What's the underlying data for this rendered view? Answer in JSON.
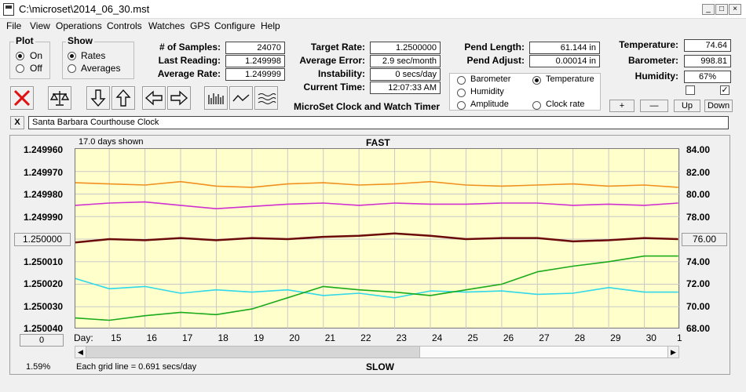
{
  "window": {
    "title": "C:\\microset\\2014_06_30.mst"
  },
  "menu": [
    "File",
    "View",
    "Operations",
    "Controls",
    "Watches",
    "GPS",
    "Configure",
    "Help"
  ],
  "plot_group": {
    "title": "Plot",
    "on": "On",
    "off": "Off"
  },
  "show_group": {
    "title": "Show",
    "rates": "Rates",
    "averages": "Averages"
  },
  "stats": {
    "samples_label": "# of Samples:",
    "samples": "24070",
    "last_label": "Last Reading:",
    "last": "1.249998",
    "avg_label": "Average Rate:",
    "avg": "1.249999",
    "target_label": "Target Rate:",
    "target": "1.2500000",
    "avgerr_label": "Average Error:",
    "avgerr": "2.9 sec/month",
    "instab_label": "Instability:",
    "instab": "0 secs/day",
    "time_label": "Current Time:",
    "time": "12:07:33 AM",
    "pendlen_label": "Pend Length:",
    "pendlen": "61.144 in",
    "pendadj_label": "Pend Adjust:",
    "pendadj": "0.00014 in",
    "temp_label": "Temperature:",
    "temp": "74.64",
    "baro_label": "Barometer:",
    "baro": "998.81",
    "hum_label": "Humidity:",
    "hum": "67%"
  },
  "app_caption": "MicroSet Clock and Watch Timer",
  "sensor_options": {
    "barometer": "Barometer",
    "temperature": "Temperature",
    "humidity": "Humidity",
    "amplitude": "Amplitude",
    "clock_rate": "Clock rate"
  },
  "colors": {
    "barometer": "#f0901e",
    "temperature": "#1aaa1a",
    "humidity": "#d030d0",
    "amplitude": "#30d8e8",
    "rate": "#6a0a0a"
  },
  "right_buttons": {
    "plus": "+",
    "minus": "—",
    "up": "Up",
    "down": "Down"
  },
  "watch_name": "Santa Barbara Courthouse Clock",
  "close_x": "X",
  "chart_header": {
    "days_shown": "17.0 days shown",
    "fast": "FAST",
    "slow": "SLOW",
    "pct": "1.59%",
    "grid_note": "Each grid line = 0.691 secs/day",
    "day_label": "Day:"
  },
  "left_center_btn": "1.250000",
  "left_bottom_btn": "0",
  "right_center_btn": "76.00",
  "chart_data": {
    "type": "line",
    "y_left_ticks": [
      "1.249960",
      "1.249970",
      "1.249980",
      "1.249990",
      "1.250000",
      "1.250010",
      "1.250020",
      "1.250030",
      "1.250040"
    ],
    "y_right_ticks": [
      "84.00",
      "82.00",
      "80.00",
      "78.00",
      "76.00",
      "74.00",
      "72.00",
      "70.00",
      "68.00"
    ],
    "x_ticks": [
      "15",
      "16",
      "17",
      "18",
      "19",
      "20",
      "21",
      "22",
      "23",
      "24",
      "25",
      "26",
      "27",
      "28",
      "29",
      "30",
      "1"
    ],
    "x": [
      14.05,
      15,
      16,
      17,
      18,
      19,
      20,
      21,
      22,
      23,
      24,
      25,
      26,
      27,
      28,
      29,
      30,
      30.95
    ],
    "series": [
      {
        "key": "barometer",
        "values": [
          81.0,
          80.9,
          80.8,
          81.1,
          80.7,
          80.6,
          80.9,
          81.0,
          80.8,
          80.9,
          81.1,
          80.8,
          80.7,
          80.8,
          80.9,
          80.7,
          80.8,
          80.6
        ]
      },
      {
        "key": "humidity",
        "values": [
          79.0,
          79.2,
          79.3,
          79.0,
          78.7,
          78.9,
          79.1,
          79.2,
          79.0,
          79.2,
          79.1,
          79.1,
          79.2,
          79.2,
          79.0,
          79.1,
          79.0,
          79.2
        ]
      },
      {
        "key": "rate",
        "values": [
          75.7,
          76.0,
          75.9,
          76.1,
          75.9,
          76.1,
          76.0,
          76.2,
          76.3,
          76.5,
          76.3,
          76.0,
          76.1,
          76.1,
          75.8,
          75.9,
          76.1,
          76.0
        ]
      },
      {
        "key": "amplitude",
        "values": [
          72.5,
          71.6,
          71.8,
          71.2,
          71.5,
          71.3,
          71.5,
          71.0,
          71.2,
          70.8,
          71.4,
          71.3,
          71.4,
          71.1,
          71.2,
          71.7,
          71.3,
          71.3
        ]
      },
      {
        "key": "temperature",
        "values": [
          69.0,
          68.8,
          69.2,
          69.5,
          69.3,
          69.8,
          70.8,
          71.8,
          71.5,
          71.3,
          71.0,
          71.5,
          72.0,
          73.1,
          73.6,
          74.0,
          74.5,
          74.5
        ]
      }
    ]
  }
}
